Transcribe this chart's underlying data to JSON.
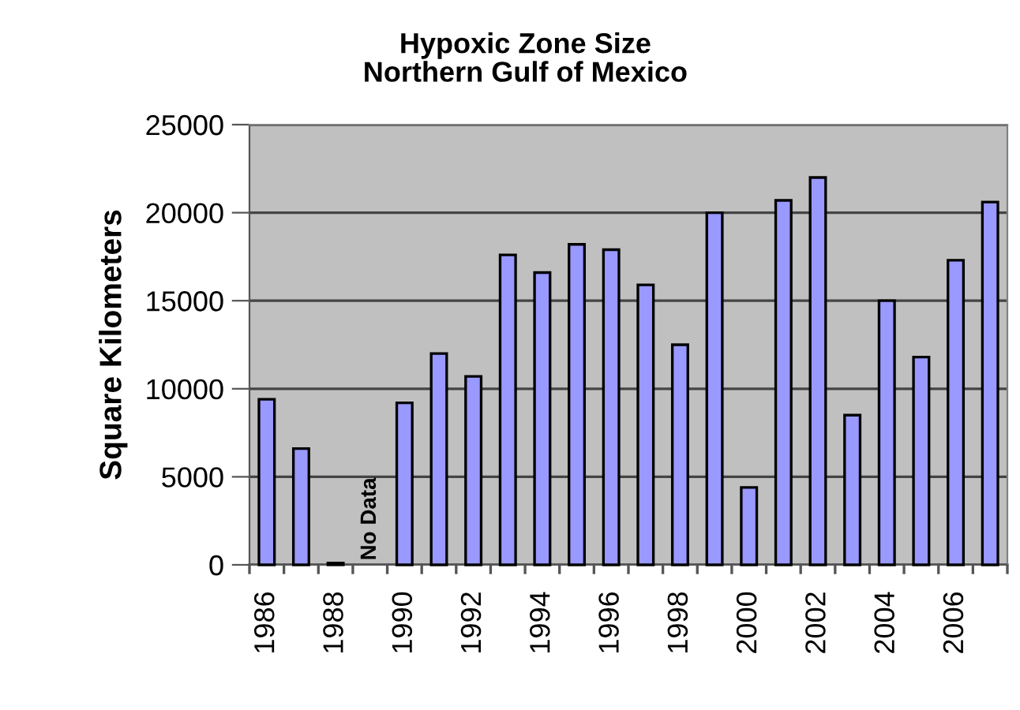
{
  "chart_data": {
    "type": "bar",
    "title": "Hypoxic Zone Size\nNorthern Gulf of Mexico",
    "ylabel": "Square Kilometers",
    "categories": [
      "1986",
      null,
      "1988",
      null,
      "1990",
      null,
      "1992",
      null,
      "1994",
      null,
      "1996",
      null,
      "1998",
      null,
      "2000",
      null,
      "2002",
      null,
      "2004",
      null,
      "2006",
      null
    ],
    "values": [
      9400,
      6600,
      100,
      null,
      9200,
      12000,
      10700,
      17600,
      16600,
      18200,
      17900,
      15900,
      12500,
      20000,
      4400,
      20700,
      22000,
      8500,
      15000,
      11800,
      17300,
      20600
    ],
    "color": "#9999ff",
    "ylim": [
      0,
      25000
    ],
    "yticks": [
      0,
      5000,
      10000,
      15000,
      20000,
      25000
    ],
    "grid": "y",
    "annotations": [
      "No Data"
    ]
  }
}
